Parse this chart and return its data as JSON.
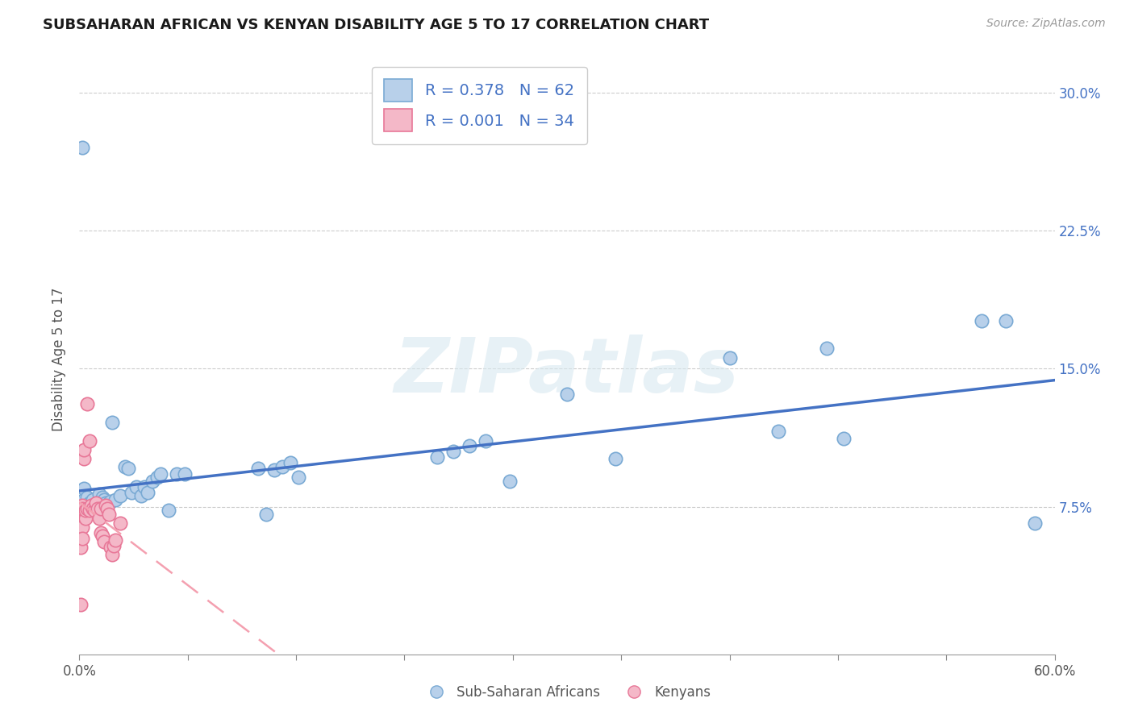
{
  "title": "SUBSAHARAN AFRICAN VS KENYAN DISABILITY AGE 5 TO 17 CORRELATION CHART",
  "source": "Source: ZipAtlas.com",
  "ylabel": "Disability Age 5 to 17",
  "xlim": [
    0.0,
    0.6
  ],
  "ylim": [
    -0.005,
    0.315
  ],
  "xticks": [
    0.0,
    0.06667,
    0.13333,
    0.2,
    0.26667,
    0.33333,
    0.4,
    0.46667,
    0.53333,
    0.6
  ],
  "xtick_labels_show": [
    "0.0%",
    "",
    "",
    "",
    "",
    "",
    "",
    "",
    "",
    "60.0%"
  ],
  "yticks": [
    0.0,
    0.075,
    0.15,
    0.225,
    0.3
  ],
  "ytick_labels": [
    "",
    "7.5%",
    "15.0%",
    "22.5%",
    "30.0%"
  ],
  "grid_yticks": [
    0.075,
    0.15,
    0.225,
    0.3
  ],
  "grid_color": "#cccccc",
  "background_color": "#ffffff",
  "watermark": "ZIPatlas",
  "blue_scatter_x": [
    0.002,
    0.003,
    0.003,
    0.004,
    0.004,
    0.005,
    0.005,
    0.006,
    0.006,
    0.007,
    0.007,
    0.008,
    0.009,
    0.01,
    0.01,
    0.011,
    0.012,
    0.012,
    0.013,
    0.014,
    0.015,
    0.015,
    0.016,
    0.017,
    0.018,
    0.019,
    0.02,
    0.022,
    0.025,
    0.028,
    0.03,
    0.032,
    0.035,
    0.038,
    0.04,
    0.042,
    0.045,
    0.048,
    0.05,
    0.055,
    0.06,
    0.065,
    0.11,
    0.115,
    0.12,
    0.125,
    0.13,
    0.135,
    0.22,
    0.23,
    0.24,
    0.25,
    0.265,
    0.3,
    0.33,
    0.4,
    0.43,
    0.46,
    0.47,
    0.555,
    0.57,
    0.588
  ],
  "blue_scatter_y": [
    0.27,
    0.085,
    0.079,
    0.076,
    0.074,
    0.08,
    0.073,
    0.077,
    0.075,
    0.075,
    0.073,
    0.079,
    0.075,
    0.074,
    0.073,
    0.077,
    0.076,
    0.082,
    0.077,
    0.08,
    0.079,
    0.076,
    0.077,
    0.076,
    0.077,
    0.078,
    0.121,
    0.079,
    0.081,
    0.097,
    0.096,
    0.083,
    0.086,
    0.081,
    0.086,
    0.083,
    0.089,
    0.091,
    0.093,
    0.073,
    0.093,
    0.093,
    0.096,
    0.071,
    0.095,
    0.097,
    0.099,
    0.091,
    0.102,
    0.105,
    0.108,
    0.111,
    0.089,
    0.136,
    0.101,
    0.156,
    0.116,
    0.161,
    0.112,
    0.176,
    0.176,
    0.066
  ],
  "pink_scatter_x": [
    0.001,
    0.001,
    0.001,
    0.001,
    0.002,
    0.002,
    0.002,
    0.002,
    0.003,
    0.003,
    0.004,
    0.004,
    0.005,
    0.005,
    0.006,
    0.006,
    0.007,
    0.008,
    0.009,
    0.01,
    0.011,
    0.012,
    0.013,
    0.013,
    0.014,
    0.015,
    0.016,
    0.017,
    0.018,
    0.019,
    0.02,
    0.021,
    0.022,
    0.025
  ],
  "pink_scatter_y": [
    0.022,
    0.053,
    0.074,
    0.067,
    0.076,
    0.064,
    0.058,
    0.074,
    0.101,
    0.106,
    0.069,
    0.073,
    0.131,
    0.074,
    0.111,
    0.073,
    0.076,
    0.074,
    0.073,
    0.077,
    0.074,
    0.069,
    0.061,
    0.074,
    0.059,
    0.056,
    0.076,
    0.074,
    0.071,
    0.053,
    0.049,
    0.054,
    0.057,
    0.066
  ],
  "blue_line_color": "#4472c4",
  "pink_line_color": "#f4a0b0",
  "blue_scatter_facecolor": "#b8d0ea",
  "blue_scatter_edgecolor": "#7aaad4",
  "pink_scatter_facecolor": "#f4b8c8",
  "pink_scatter_edgecolor": "#e87898",
  "legend_blue_label": "R = 0.378   N = 62",
  "legend_pink_label": "R = 0.001   N = 34",
  "legend_bottom_blue": "Sub-Saharan Africans",
  "legend_bottom_pink": "Kenyans"
}
